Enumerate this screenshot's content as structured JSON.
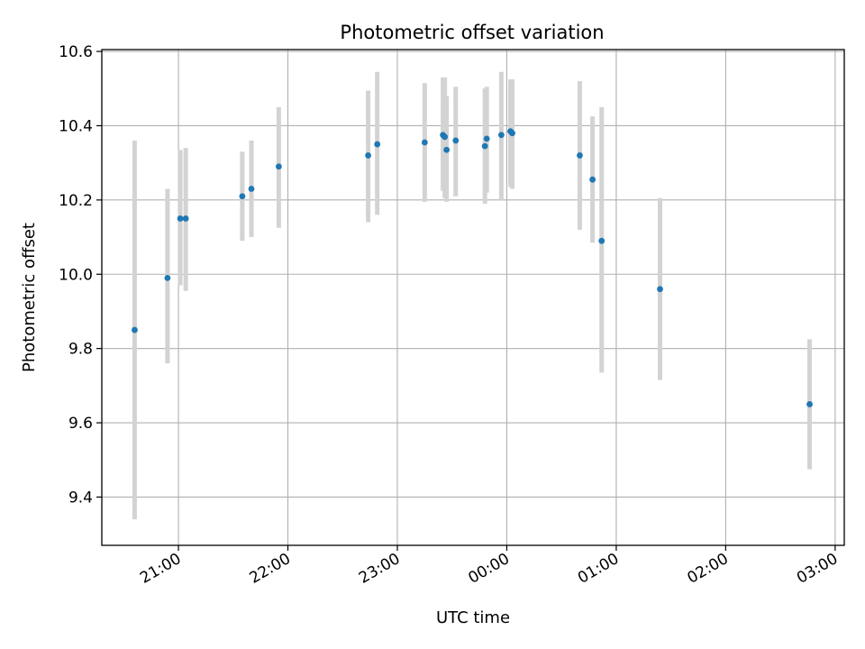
{
  "chart_data": {
    "type": "scatter",
    "title": "Photometric offset variation",
    "xlabel": "UTC time",
    "ylabel": "Photometric offset",
    "x_axis_kind": "time",
    "xlim": [
      "20:18",
      "03:05"
    ],
    "ylim": [
      9.27,
      10.605
    ],
    "xticks": [
      "21:00",
      "22:00",
      "23:00",
      "00:00",
      "01:00",
      "02:00",
      "03:00"
    ],
    "yticks": [
      "9.4",
      "9.6",
      "9.8",
      "10.0",
      "10.2",
      "10.4",
      "10.6"
    ],
    "grid": true,
    "colors": {
      "point": "#1f77b4",
      "errorbar": "#d3d3d3",
      "grid": "#b0b0b0",
      "axes": "#000000"
    },
    "points": [
      {
        "x": "20:36",
        "y": 9.85,
        "ylow": 9.34,
        "yhigh": 10.36
      },
      {
        "x": "20:54",
        "y": 9.99,
        "ylow": 9.76,
        "yhigh": 10.23
      },
      {
        "x": "21:01",
        "y": 10.15,
        "ylow": 9.97,
        "yhigh": 10.335
      },
      {
        "x": "21:04",
        "y": 10.15,
        "ylow": 9.955,
        "yhigh": 10.34
      },
      {
        "x": "21:35",
        "y": 10.21,
        "ylow": 10.09,
        "yhigh": 10.33
      },
      {
        "x": "21:40",
        "y": 10.23,
        "ylow": 10.1,
        "yhigh": 10.36
      },
      {
        "x": "21:55",
        "y": 10.29,
        "ylow": 10.125,
        "yhigh": 10.45
      },
      {
        "x": "22:44",
        "y": 10.32,
        "ylow": 10.14,
        "yhigh": 10.495
      },
      {
        "x": "22:49",
        "y": 10.35,
        "ylow": 10.16,
        "yhigh": 10.545
      },
      {
        "x": "23:15",
        "y": 10.355,
        "ylow": 10.195,
        "yhigh": 10.515
      },
      {
        "x": "23:25",
        "y": 10.375,
        "ylow": 10.225,
        "yhigh": 10.53
      },
      {
        "x": "23:26",
        "y": 10.37,
        "ylow": 10.205,
        "yhigh": 10.53
      },
      {
        "x": "23:27",
        "y": 10.335,
        "ylow": 10.195,
        "yhigh": 10.48
      },
      {
        "x": "23:32",
        "y": 10.36,
        "ylow": 10.21,
        "yhigh": 10.505
      },
      {
        "x": "23:48",
        "y": 10.345,
        "ylow": 10.19,
        "yhigh": 10.5
      },
      {
        "x": "23:49",
        "y": 10.365,
        "ylow": 10.22,
        "yhigh": 10.505
      },
      {
        "x": "23:57",
        "y": 10.375,
        "ylow": 10.2,
        "yhigh": 10.545
      },
      {
        "x": "00:02",
        "y": 10.385,
        "ylow": 10.235,
        "yhigh": 10.525
      },
      {
        "x": "00:03",
        "y": 10.38,
        "ylow": 10.23,
        "yhigh": 10.525
      },
      {
        "x": "00:40",
        "y": 10.32,
        "ylow": 10.12,
        "yhigh": 10.52
      },
      {
        "x": "00:47",
        "y": 10.255,
        "ylow": 10.085,
        "yhigh": 10.425
      },
      {
        "x": "00:52",
        "y": 10.09,
        "ylow": 9.735,
        "yhigh": 10.45
      },
      {
        "x": "01:24",
        "y": 9.96,
        "ylow": 9.715,
        "yhigh": 10.205
      },
      {
        "x": "02:46",
        "y": 9.65,
        "ylow": 9.475,
        "yhigh": 9.825
      }
    ]
  }
}
